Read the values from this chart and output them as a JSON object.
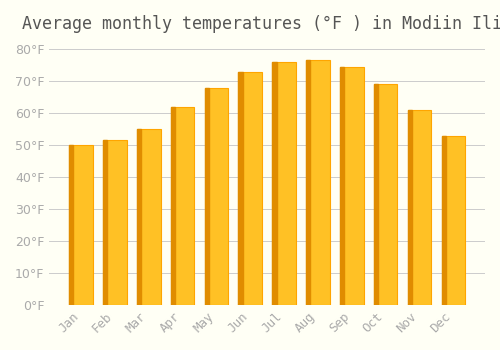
{
  "title": "Average monthly temperatures (°F ) in Modiin Ilit",
  "months": [
    "Jan",
    "Feb",
    "Mar",
    "Apr",
    "May",
    "Jun",
    "Jul",
    "Aug",
    "Sep",
    "Oct",
    "Nov",
    "Dec"
  ],
  "values": [
    50,
    51.5,
    55,
    62,
    68,
    73,
    76,
    76.5,
    74.5,
    69,
    61,
    53
  ],
  "bar_color_face": "#FFC125",
  "bar_color_edge": "#FFA500",
  "background_color": "#FFFFF5",
  "grid_color": "#CCCCCC",
  "text_color": "#AAAAAA",
  "ylim": [
    0,
    82
  ],
  "yticks": [
    0,
    10,
    20,
    30,
    40,
    50,
    60,
    70,
    80
  ],
  "ylabel_suffix": "°F",
  "title_fontsize": 12,
  "tick_fontsize": 9
}
